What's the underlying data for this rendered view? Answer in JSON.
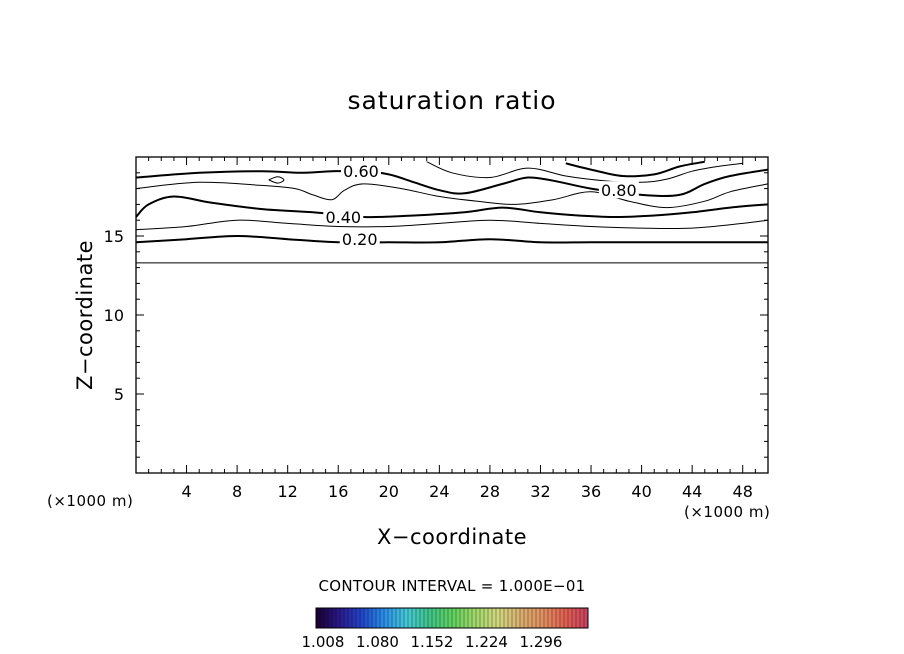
{
  "chart_data": {
    "type": "contour",
    "title": "saturation ratio",
    "xlabel": "X−coordinate",
    "ylabel": "Z−coordinate",
    "x_unit": "(×1000 m)",
    "z_unit": "(×1000 m)",
    "xlim": [
      0,
      50
    ],
    "ylim": [
      0,
      20
    ],
    "x_ticks": [
      4,
      8,
      12,
      16,
      20,
      24,
      28,
      32,
      36,
      40,
      44,
      48
    ],
    "y_ticks": [
      5,
      10,
      15
    ],
    "contour_labels": [
      {
        "text": "0.20",
        "x": 17.7,
        "z": 14.8
      },
      {
        "text": "0.40",
        "x": 16.4,
        "z": 16.2
      },
      {
        "text": "0.60",
        "x": 17.8,
        "z": 19.1
      },
      {
        "text": "0.80",
        "x": 38.2,
        "z": 17.9
      }
    ],
    "contours": [
      {
        "level": 0.1,
        "bold": false,
        "points": [
          [
            0,
            13.3
          ],
          [
            10,
            13.3
          ],
          [
            20,
            13.3
          ],
          [
            30,
            13.3
          ],
          [
            40,
            13.3
          ],
          [
            50,
            13.3
          ]
        ]
      },
      {
        "level": 0.2,
        "bold": true,
        "points": [
          [
            0,
            14.6
          ],
          [
            4,
            14.8
          ],
          [
            8,
            15.0
          ],
          [
            12,
            14.8
          ],
          [
            16,
            14.6
          ],
          [
            20,
            14.6
          ],
          [
            24,
            14.6
          ],
          [
            28,
            14.8
          ],
          [
            32,
            14.6
          ],
          [
            36,
            14.6
          ],
          [
            40,
            14.6
          ],
          [
            44,
            14.6
          ],
          [
            50,
            14.6
          ]
        ]
      },
      {
        "level": 0.3,
        "bold": false,
        "points": [
          [
            0,
            15.4
          ],
          [
            4,
            15.6
          ],
          [
            8,
            16.0
          ],
          [
            12,
            15.8
          ],
          [
            16,
            15.6
          ],
          [
            20,
            15.6
          ],
          [
            24,
            15.8
          ],
          [
            28,
            16.0
          ],
          [
            32,
            15.8
          ],
          [
            36,
            15.6
          ],
          [
            40,
            15.5
          ],
          [
            44,
            15.5
          ],
          [
            48,
            15.8
          ],
          [
            50,
            16.0
          ]
        ]
      },
      {
        "level": 0.4,
        "bold": true,
        "points": [
          [
            0,
            16.2
          ],
          [
            1,
            17.0
          ],
          [
            3,
            17.5
          ],
          [
            6,
            17.1
          ],
          [
            10,
            16.7
          ],
          [
            14,
            16.5
          ],
          [
            18,
            16.2
          ],
          [
            22,
            16.3
          ],
          [
            26,
            16.5
          ],
          [
            29,
            16.8
          ],
          [
            32,
            16.5
          ],
          [
            35,
            16.3
          ],
          [
            38,
            16.2
          ],
          [
            41,
            16.3
          ],
          [
            44,
            16.5
          ],
          [
            47,
            16.8
          ],
          [
            50,
            17.0
          ]
        ]
      },
      {
        "level": 0.5,
        "bold": false,
        "points": [
          [
            0,
            18.0
          ],
          [
            5,
            18.4
          ],
          [
            10,
            18.2
          ],
          [
            12.6,
            18.0
          ],
          [
            14,
            17.6
          ],
          [
            15.5,
            17.3
          ],
          [
            16.5,
            17.9
          ],
          [
            18,
            18.3
          ],
          [
            21,
            18.0
          ],
          [
            24,
            17.5
          ],
          [
            27,
            17.2
          ],
          [
            30,
            17.0
          ],
          [
            33,
            17.3
          ],
          [
            36,
            17.8
          ],
          [
            39,
            17.2
          ],
          [
            42,
            16.8
          ],
          [
            45,
            17.2
          ],
          [
            47,
            17.8
          ],
          [
            50,
            18.3
          ]
        ]
      },
      {
        "level": 0.6,
        "bold": true,
        "points": [
          [
            0,
            18.7
          ],
          [
            5,
            19.0
          ],
          [
            10,
            19.1
          ],
          [
            13,
            19.0
          ],
          [
            15.5,
            19.1
          ],
          [
            18,
            19.1
          ],
          [
            20,
            18.9
          ],
          [
            22,
            18.4
          ],
          [
            24,
            17.9
          ],
          [
            26,
            17.7
          ],
          [
            29,
            18.3
          ],
          [
            31,
            18.7
          ],
          [
            33,
            18.5
          ],
          [
            36,
            18.0
          ],
          [
            40,
            17.6
          ],
          [
            43,
            17.6
          ],
          [
            45,
            18.3
          ],
          [
            47,
            18.8
          ],
          [
            50,
            19.2
          ]
        ]
      },
      {
        "level": 0.7,
        "bold": false,
        "points": [
          [
            23,
            19.7
          ],
          [
            25,
            19.0
          ],
          [
            28,
            18.7
          ],
          [
            31,
            19.3
          ],
          [
            34,
            18.8
          ],
          [
            37,
            18.5
          ],
          [
            40,
            18.4
          ],
          [
            42,
            18.6
          ],
          [
            44,
            19.1
          ],
          [
            46,
            19.4
          ],
          [
            48,
            19.6
          ]
        ]
      },
      {
        "level": 0.8,
        "bold": true,
        "points": [
          [
            34,
            19.6
          ],
          [
            36,
            19.2
          ],
          [
            38.5,
            18.8
          ],
          [
            41,
            18.9
          ],
          [
            43,
            19.4
          ],
          [
            45,
            19.7
          ]
        ]
      },
      {
        "level": 0.5,
        "bold": false,
        "points": [
          [
            10.5,
            18.55
          ],
          [
            11.2,
            18.75
          ],
          [
            11.7,
            18.55
          ],
          [
            11.2,
            18.35
          ],
          [
            10.5,
            18.55
          ]
        ]
      }
    ],
    "colorbar": {
      "colors": [
        "#1a0030",
        "#2a1888",
        "#2244c8",
        "#2a8ee8",
        "#46c8d8",
        "#3ec48a",
        "#5ed05e",
        "#9ed86a",
        "#d0d880",
        "#d8b070",
        "#e09060",
        "#e06050",
        "#c84060"
      ],
      "tick_labels": [
        "1.008",
        "1.080",
        "1.152",
        "1.224",
        "1.296"
      ]
    },
    "contour_interval_text": "CONTOUR INTERVAL = 1.000E−01"
  }
}
